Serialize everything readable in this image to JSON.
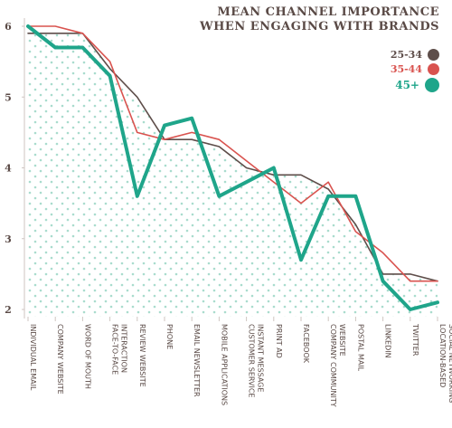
{
  "chart_data": {
    "type": "line",
    "title_lines": [
      "MEAN CHANNEL IMPORTANCE",
      "WHEN ENGAGING WITH BRANDS"
    ],
    "categories": [
      [
        "INDIVIDUAL EMAIL"
      ],
      [
        "COMPANY WEBSITE"
      ],
      [
        "WORD OF MOUTH"
      ],
      [
        "FACE-TO-FACE",
        "INTERACTION"
      ],
      [
        "REVIEW WEBSITE"
      ],
      [
        "PHONE"
      ],
      [
        "EMAIL NEWSLETTER"
      ],
      [
        "MOBILE APPLICATIONS"
      ],
      [
        "CUSTOMER SERVICE",
        "INSTANT MESSAGE"
      ],
      [
        "PRINT AD"
      ],
      [
        "FACEBOOK"
      ],
      [
        "COMPANY COMMUNITY",
        "WEBSITE"
      ],
      [
        "POSTAL MAIL"
      ],
      [
        "LINKEDIN"
      ],
      [
        "TWITTER"
      ],
      [
        "LOCATION-BASED",
        "SOCIAL NETWORKING"
      ]
    ],
    "y_ticks": [
      "2",
      "3",
      "4",
      "5",
      "6"
    ],
    "ylim": [
      2,
      6
    ],
    "legend_position": "top-right",
    "grid": false,
    "series": [
      {
        "name": "25-34",
        "color": "#5e4e4a",
        "values": [
          5.9,
          5.9,
          5.9,
          5.4,
          5.0,
          4.4,
          4.4,
          4.3,
          4.0,
          3.9,
          3.9,
          3.7,
          3.2,
          2.5,
          2.5,
          2.4
        ]
      },
      {
        "name": "35-44",
        "color": "#d9534f",
        "values": [
          6.0,
          6.0,
          5.9,
          5.5,
          4.5,
          4.4,
          4.5,
          4.4,
          4.1,
          3.8,
          3.5,
          3.8,
          3.1,
          2.8,
          2.4,
          2.4
        ]
      },
      {
        "name": "45+",
        "color": "#1fa58a",
        "values": [
          6.0,
          5.7,
          5.7,
          5.3,
          3.6,
          4.6,
          4.7,
          3.6,
          3.8,
          4.0,
          2.7,
          3.6,
          3.6,
          2.4,
          2.0,
          2.1
        ]
      }
    ]
  }
}
